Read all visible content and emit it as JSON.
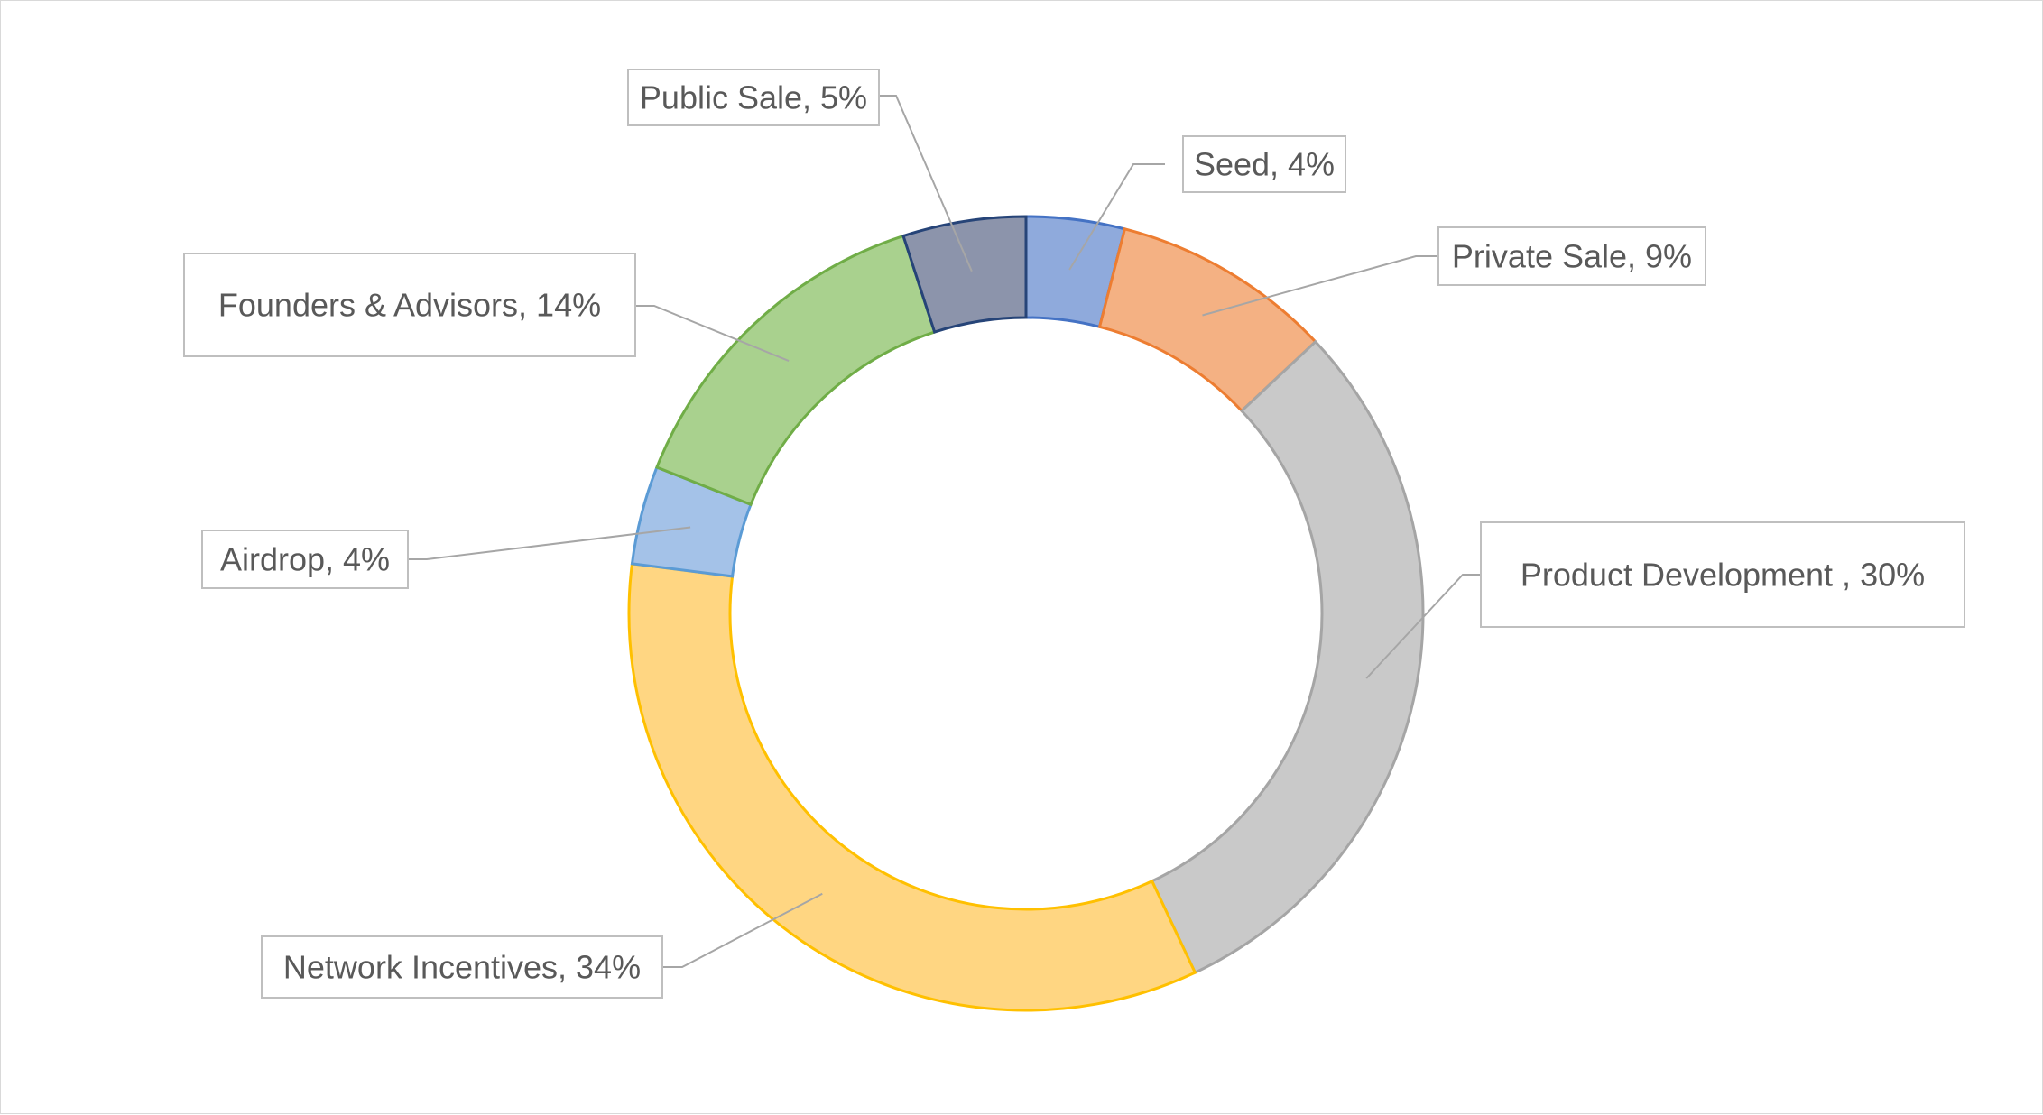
{
  "chart_data": {
    "type": "pie",
    "variant": "doughnut",
    "title": "",
    "legend": "none",
    "slices": [
      {
        "label": "Seed",
        "value": 4,
        "data_label": "Seed, 4%",
        "fill": "#8faadc",
        "stroke": "#4472c4"
      },
      {
        "label": "Private Sale",
        "value": 9,
        "data_label": "Private Sale, 9%",
        "fill": "#f4b183",
        "stroke": "#ed7d31"
      },
      {
        "label": "Product Development ",
        "value": 30,
        "data_label": "Product Development , 30%",
        "fill": "#c9c9c9",
        "stroke": "#a5a5a5"
      },
      {
        "label": "Network Incentives",
        "value": 34,
        "data_label": "Network Incentives, 34%",
        "fill": "#ffd682",
        "stroke": "#ffc000"
      },
      {
        "label": "Airdrop",
        "value": 4,
        "data_label": "Airdrop, 4%",
        "fill": "#a4c2e8",
        "stroke": "#5b9bd5"
      },
      {
        "label": "Founders & Advisors",
        "value": 14,
        "data_label": "Founders & Advisors, 14%",
        "fill": "#a9d18e",
        "stroke": "#70ad47"
      },
      {
        "label": "Public Sale",
        "value": 5,
        "data_label": "Public Sale, 5%",
        "fill": "#8c94ab",
        "stroke": "#264478"
      }
    ]
  }
}
